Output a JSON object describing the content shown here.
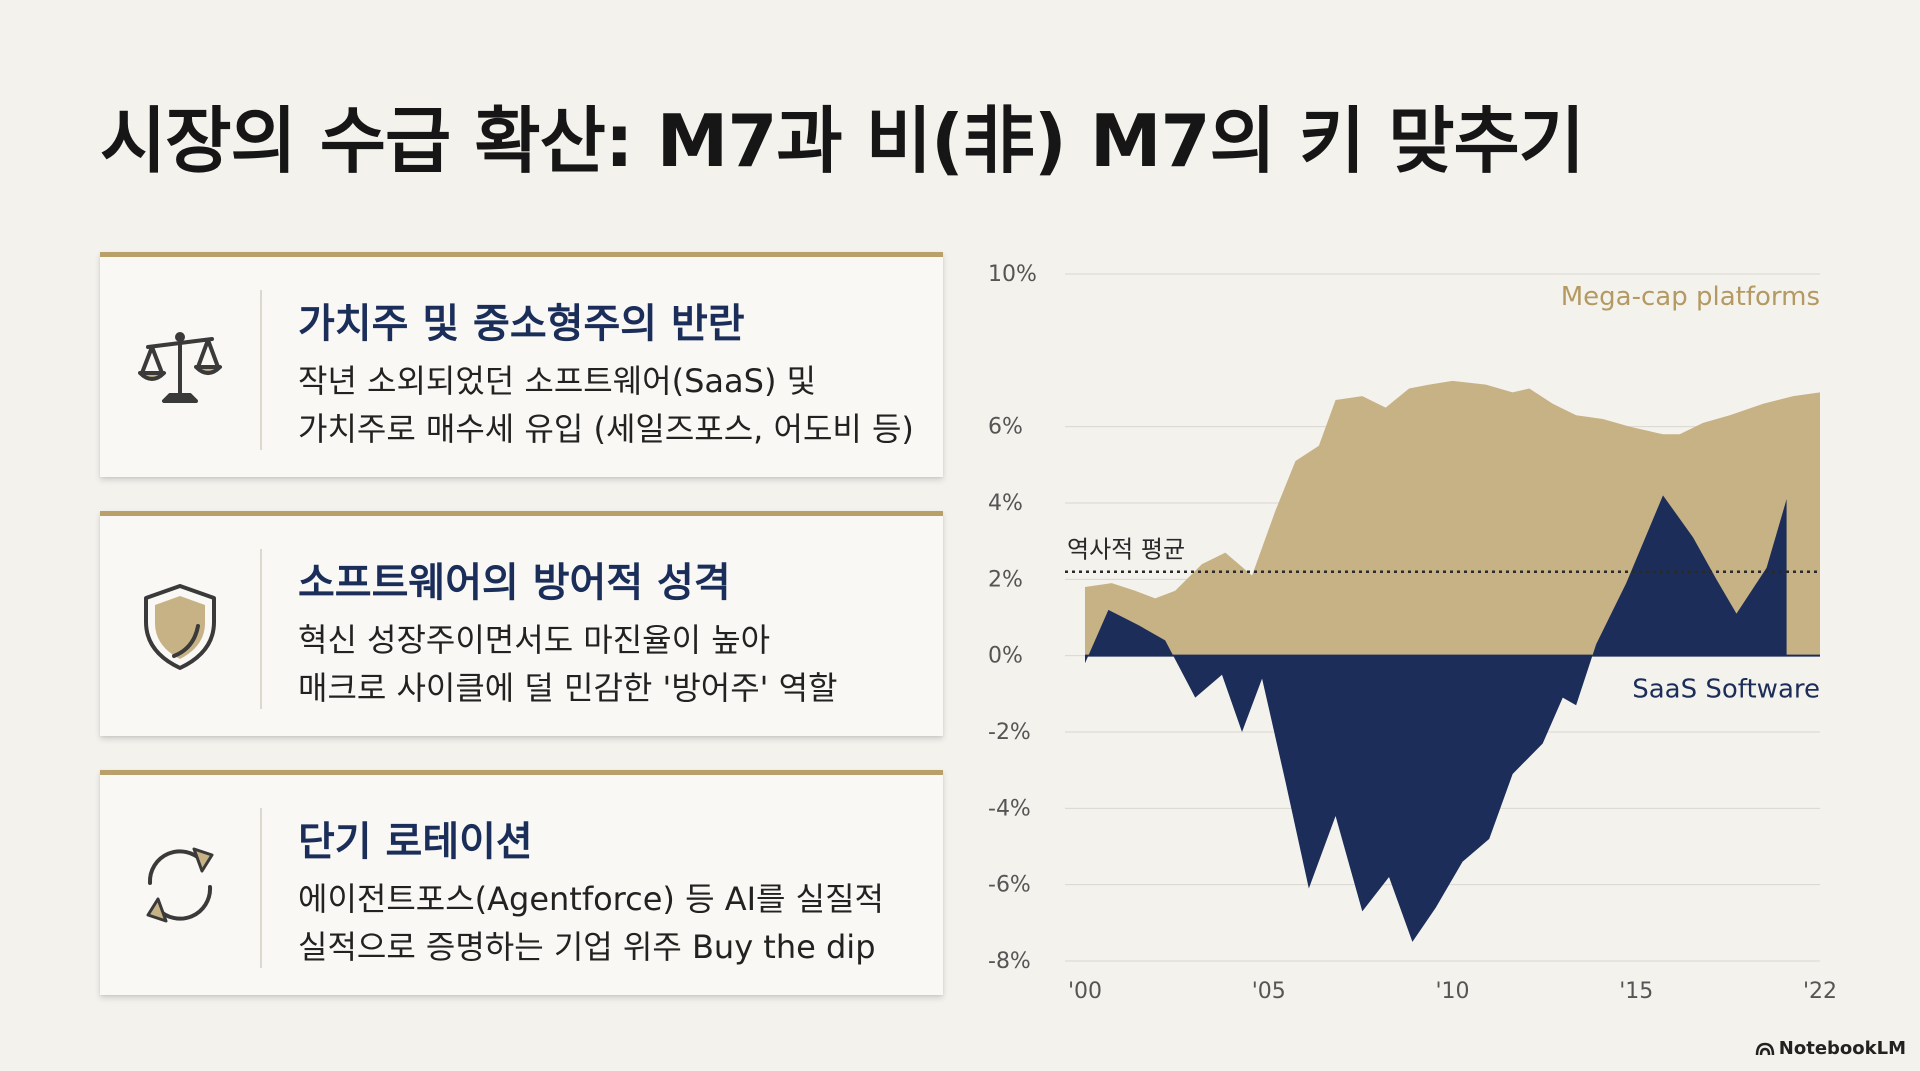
{
  "title": "시장의 수급 확산: M7과 비(非) M7의 키 맞추기",
  "cards": [
    {
      "icon": "scale-icon",
      "heading": "가치주 및 중소형주의 반란",
      "lines": [
        "작년 소외되었던 소프트웨어(SaaS) 및",
        "가치주로 매수세 유입 (세일즈포스, 어도비 등)"
      ]
    },
    {
      "icon": "shield-icon",
      "heading": "소프트웨어의 방어적 성격",
      "lines": [
        "혁신 성장주이면서도 마진율이 높아",
        "매크로 사이클에 덜 민감한 '방어주' 역할"
      ]
    },
    {
      "icon": "refresh-cycle-icon",
      "heading": "단기 로테이션",
      "lines": [
        "에이전트포스(Agentforce) 등 AI를 실질적",
        "실적으로 증명하는 기업 위주 Buy the dip"
      ]
    }
  ],
  "chart_data": {
    "type": "area",
    "x_ticks": [
      "'00",
      "'05",
      "'10",
      "'15",
      "'22"
    ],
    "y_ticks": [
      "10%",
      "6%",
      "4%",
      "2%",
      "0%",
      "-2%",
      "-4%",
      "-6%",
      "-8%"
    ],
    "ylim": [
      -8,
      10
    ],
    "xlim": [
      2000,
      2022
    ],
    "reference_line": {
      "label": "역사적 평균",
      "value": 2.2
    },
    "series": [
      {
        "name": "Mega-cap platforms",
        "color": "#c7b285",
        "points": [
          [
            2000,
            1.8
          ],
          [
            2000.8,
            1.9
          ],
          [
            2001.5,
            1.7
          ],
          [
            2002.1,
            1.5
          ],
          [
            2002.7,
            1.7
          ],
          [
            2003.5,
            2.4
          ],
          [
            2004.2,
            2.7
          ],
          [
            2005,
            2.1
          ],
          [
            2005.7,
            3.8
          ],
          [
            2006.3,
            5.1
          ],
          [
            2007,
            5.5
          ],
          [
            2007.5,
            6.7
          ],
          [
            2008.3,
            6.8
          ],
          [
            2009,
            6.5
          ],
          [
            2009.7,
            7.0
          ],
          [
            2010.3,
            7.1
          ],
          [
            2011,
            7.2
          ],
          [
            2012,
            7.1
          ],
          [
            2012.8,
            6.9
          ],
          [
            2013.3,
            7.0
          ],
          [
            2014,
            6.6
          ],
          [
            2014.7,
            6.3
          ],
          [
            2015.5,
            6.2
          ],
          [
            2016.3,
            6.0
          ],
          [
            2017.3,
            5.8
          ],
          [
            2017.8,
            5.8
          ],
          [
            2018.5,
            6.1
          ],
          [
            2019.3,
            6.3
          ],
          [
            2020.3,
            6.6
          ],
          [
            2021.2,
            6.8
          ],
          [
            2022,
            6.9
          ]
        ]
      },
      {
        "name": "SaaS Software",
        "color": "#1b2d58",
        "points": [
          [
            2000,
            -0.2
          ],
          [
            2000.7,
            1.2
          ],
          [
            2001.6,
            0.8
          ],
          [
            2002.4,
            0.4
          ],
          [
            2003.3,
            -1.1
          ],
          [
            2004.1,
            -0.5
          ],
          [
            2004.7,
            -2.0
          ],
          [
            2005.3,
            -0.6
          ],
          [
            2006,
            -3.3
          ],
          [
            2006.7,
            -6.1
          ],
          [
            2007.5,
            -4.2
          ],
          [
            2008.3,
            -6.7
          ],
          [
            2009.1,
            -5.8
          ],
          [
            2009.8,
            -7.5
          ],
          [
            2010.5,
            -6.6
          ],
          [
            2011.3,
            -5.4
          ],
          [
            2012.1,
            -4.8
          ],
          [
            2012.8,
            -3.1
          ],
          [
            2013.7,
            -2.3
          ],
          [
            2014.3,
            -1.1
          ],
          [
            2014.7,
            -1.3
          ],
          [
            2015.3,
            0.3
          ],
          [
            2016.2,
            1.9
          ],
          [
            2017.3,
            4.2
          ],
          [
            2018.2,
            3.1
          ],
          [
            2018.9,
            2.0
          ],
          [
            2019.5,
            1.1
          ],
          [
            2020.4,
            2.3
          ],
          [
            2021,
            4.1
          ]
        ]
      }
    ]
  },
  "footer": {
    "brand": "NotebookLM"
  }
}
